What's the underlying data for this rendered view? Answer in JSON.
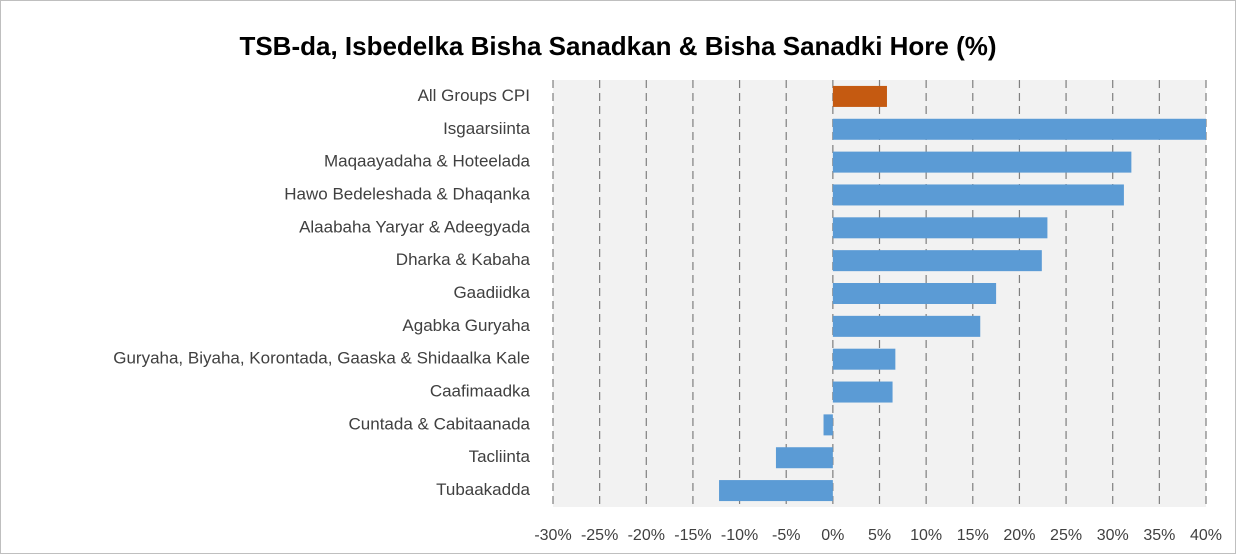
{
  "chart_data": {
    "type": "barh",
    "title": "TSB-da, Isbedelka Bisha Sanadkan & Bisha Sanadki Hore (%)",
    "categories": [
      "All Groups CPI",
      "Isgaarsiinta",
      "Maqaayadaha & Hoteelada",
      "Hawo Bedeleshada & Dhaqanka",
      "Alaabaha Yaryar & Adeegyada",
      "Dharka & Kabaha",
      "Gaadiidka",
      "Agabka Guryaha",
      "Guryaha, Biyaha, Korontada, Gaaska & Shidaalka Kale",
      "Caafimaadka",
      "Cuntada & Cabitaanada",
      "Tacliinta",
      "Tubaakadda"
    ],
    "values": [
      5.8,
      40,
      32,
      31.2,
      23,
      22.4,
      17.5,
      15.8,
      6.7,
      6.4,
      -1.0,
      -6.1,
      -12.2
    ],
    "colors": [
      "#c55a11",
      "#5b9bd5",
      "#5b9bd5",
      "#5b9bd5",
      "#5b9bd5",
      "#5b9bd5",
      "#5b9bd5",
      "#5b9bd5",
      "#5b9bd5",
      "#5b9bd5",
      "#5b9bd5",
      "#5b9bd5",
      "#5b9bd5"
    ],
    "xlim": [
      -30,
      40
    ],
    "xticks": [
      {
        "value": -30,
        "label": "-30%"
      },
      {
        "value": -25,
        "label": "-25%"
      },
      {
        "value": -20,
        "label": "-20%"
      },
      {
        "value": -15,
        "label": "-15%"
      },
      {
        "value": -10,
        "label": "-10%"
      },
      {
        "value": -5,
        "label": "-5%"
      },
      {
        "value": 0,
        "label": "0%"
      },
      {
        "value": 5,
        "label": "5%"
      },
      {
        "value": 10,
        "label": "10%"
      },
      {
        "value": 15,
        "label": "15%"
      },
      {
        "value": 20,
        "label": "20%"
      },
      {
        "value": 25,
        "label": "25%"
      },
      {
        "value": 30,
        "label": "30%"
      },
      {
        "value": 35,
        "label": "35%"
      },
      {
        "value": 40,
        "label": "40%"
      }
    ],
    "grid": true
  }
}
